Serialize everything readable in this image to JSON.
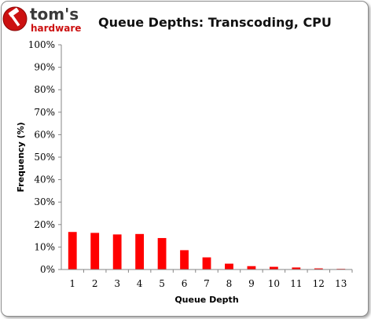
{
  "brand": {
    "name_line1": "tom's",
    "name_line2": "hardware",
    "icon": "hammer-icon",
    "brand_color": "#cc1111",
    "text_color": "#3a3a3a"
  },
  "chart_data": {
    "type": "bar",
    "title": "Queue Depths: Transcoding, CPU",
    "xlabel": "Queue Depth",
    "ylabel": "Frequency (%)",
    "categories": [
      "1",
      "2",
      "3",
      "4",
      "5",
      "6",
      "7",
      "8",
      "9",
      "10",
      "11",
      "12",
      "13"
    ],
    "values": [
      16.7,
      16.3,
      15.6,
      15.8,
      14.0,
      8.6,
      5.4,
      2.6,
      1.5,
      1.2,
      0.9,
      0.5,
      0.3
    ],
    "ylim": [
      0,
      100
    ],
    "yticks": [
      0,
      10,
      20,
      30,
      40,
      50,
      60,
      70,
      80,
      90,
      100
    ],
    "ytick_format": "%",
    "grid": false,
    "legend": "none",
    "bar_color": "#ff0000"
  }
}
